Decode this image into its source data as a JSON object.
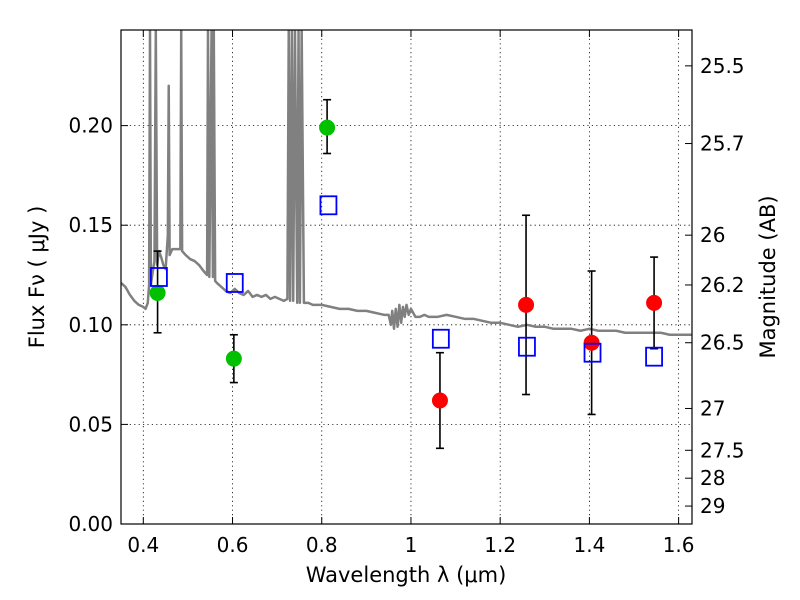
{
  "chart_data": {
    "type": "scatter",
    "title": "",
    "xlabel": "Wavelength  λ (μm)",
    "ylabel": "Flux  Fν  ( μJy )",
    "ylabel_right": "Magnitude (AB)",
    "xlim": [
      0.35,
      1.63
    ],
    "ylim": [
      0.0,
      0.248
    ],
    "grid": true,
    "x_ticks": [
      0.4,
      0.6,
      0.8,
      1.0,
      1.2,
      1.4,
      1.6
    ],
    "x_tick_labels": [
      "0.4",
      "0.6",
      "0.8",
      "1",
      "1.2",
      "1.4",
      "1.6"
    ],
    "y_ticks": [
      0.0,
      0.05,
      0.1,
      0.15,
      0.2
    ],
    "y_tick_labels": [
      "0.00",
      "0.05",
      "0.10",
      "0.15",
      "0.20"
    ],
    "right_ticks": [
      {
        "flux": 0.23,
        "label": "25.5"
      },
      {
        "flux": 0.191,
        "label": "25.7"
      },
      {
        "flux": 0.145,
        "label": "26"
      },
      {
        "flux": 0.12,
        "label": "26.2"
      },
      {
        "flux": 0.091,
        "label": "26.5"
      },
      {
        "flux": 0.058,
        "label": "27"
      },
      {
        "flux": 0.037,
        "label": "27.5"
      },
      {
        "flux": 0.023,
        "label": "28"
      },
      {
        "flux": 0.009,
        "label": "29"
      }
    ],
    "series": [
      {
        "name": "template spectrum",
        "kind": "line",
        "color": "#808080",
        "points": [
          [
            0.35,
            0.121
          ],
          [
            0.36,
            0.119
          ],
          [
            0.37,
            0.115
          ],
          [
            0.38,
            0.112
          ],
          [
            0.39,
            0.11
          ],
          [
            0.4,
            0.109
          ],
          [
            0.405,
            0.108
          ],
          [
            0.41,
            0.111
          ],
          [
            0.413,
            0.12
          ],
          [
            0.415,
            0.248
          ],
          [
            0.417,
            0.12
          ],
          [
            0.42,
            0.125
          ],
          [
            0.425,
            0.132
          ],
          [
            0.428,
            0.248
          ],
          [
            0.431,
            0.13
          ],
          [
            0.435,
            0.137
          ],
          [
            0.44,
            0.134
          ],
          [
            0.445,
            0.13
          ],
          [
            0.45,
            0.128
          ],
          [
            0.455,
            0.145
          ],
          [
            0.457,
            0.22
          ],
          [
            0.459,
            0.135
          ],
          [
            0.465,
            0.138
          ],
          [
            0.475,
            0.138
          ],
          [
            0.483,
            0.138
          ],
          [
            0.485,
            0.248
          ],
          [
            0.487,
            0.137
          ],
          [
            0.495,
            0.135
          ],
          [
            0.505,
            0.133
          ],
          [
            0.515,
            0.132
          ],
          [
            0.525,
            0.13
          ],
          [
            0.535,
            0.127
          ],
          [
            0.543,
            0.125
          ],
          [
            0.545,
            0.248
          ],
          [
            0.548,
            0.124
          ],
          [
            0.553,
            0.248
          ],
          [
            0.556,
            0.124
          ],
          [
            0.558,
            0.248
          ],
          [
            0.561,
            0.122
          ],
          [
            0.565,
            0.121
          ],
          [
            0.575,
            0.119
          ],
          [
            0.585,
            0.117
          ],
          [
            0.595,
            0.116
          ],
          [
            0.605,
            0.118
          ],
          [
            0.615,
            0.116
          ],
          [
            0.625,
            0.115
          ],
          [
            0.635,
            0.117
          ],
          [
            0.645,
            0.114
          ],
          [
            0.655,
            0.115
          ],
          [
            0.665,
            0.114
          ],
          [
            0.675,
            0.115
          ],
          [
            0.685,
            0.113
          ],
          [
            0.695,
            0.114
          ],
          [
            0.705,
            0.113
          ],
          [
            0.715,
            0.112
          ],
          [
            0.723,
            0.113
          ],
          [
            0.726,
            0.248
          ],
          [
            0.729,
            0.112
          ],
          [
            0.733,
            0.248
          ],
          [
            0.736,
            0.112
          ],
          [
            0.74,
            0.248
          ],
          [
            0.745,
            0.111
          ],
          [
            0.748,
            0.248
          ],
          [
            0.751,
            0.111
          ],
          [
            0.755,
            0.248
          ],
          [
            0.76,
            0.111
          ],
          [
            0.77,
            0.111
          ],
          [
            0.78,
            0.11
          ],
          [
            0.8,
            0.11
          ],
          [
            0.82,
            0.109
          ],
          [
            0.84,
            0.108
          ],
          [
            0.86,
            0.108
          ],
          [
            0.88,
            0.107
          ],
          [
            0.9,
            0.107
          ],
          [
            0.92,
            0.106
          ],
          [
            0.94,
            0.105
          ],
          [
            0.95,
            0.105
          ],
          [
            0.955,
            0.1
          ],
          [
            0.958,
            0.107
          ],
          [
            0.962,
            0.098
          ],
          [
            0.966,
            0.108
          ],
          [
            0.97,
            0.099
          ],
          [
            0.974,
            0.11
          ],
          [
            0.978,
            0.101
          ],
          [
            0.982,
            0.109
          ],
          [
            0.986,
            0.104
          ],
          [
            0.99,
            0.11
          ],
          [
            0.995,
            0.105
          ],
          [
            1.0,
            0.108
          ],
          [
            1.01,
            0.104
          ],
          [
            1.02,
            0.104
          ],
          [
            1.03,
            0.105
          ],
          [
            1.04,
            0.104
          ],
          [
            1.06,
            0.104
          ],
          [
            1.08,
            0.105
          ],
          [
            1.1,
            0.104
          ],
          [
            1.12,
            0.103
          ],
          [
            1.14,
            0.103
          ],
          [
            1.16,
            0.102
          ],
          [
            1.18,
            0.101
          ],
          [
            1.2,
            0.101
          ],
          [
            1.22,
            0.1
          ],
          [
            1.24,
            0.099
          ],
          [
            1.26,
            0.1
          ],
          [
            1.28,
            0.099
          ],
          [
            1.3,
            0.099
          ],
          [
            1.32,
            0.098
          ],
          [
            1.34,
            0.098
          ],
          [
            1.36,
            0.098
          ],
          [
            1.38,
            0.097
          ],
          [
            1.4,
            0.098
          ],
          [
            1.42,
            0.097
          ],
          [
            1.44,
            0.097
          ],
          [
            1.46,
            0.097
          ],
          [
            1.48,
            0.096
          ],
          [
            1.5,
            0.096
          ],
          [
            1.52,
            0.096
          ],
          [
            1.54,
            0.096
          ],
          [
            1.56,
            0.096
          ],
          [
            1.58,
            0.095
          ],
          [
            1.6,
            0.095
          ],
          [
            1.63,
            0.095
          ]
        ]
      },
      {
        "name": "green detections",
        "kind": "points",
        "color": "#00c000",
        "points": [
          {
            "x": 0.432,
            "y": 0.116,
            "err_lo": 0.096,
            "err_hi": 0.137
          },
          {
            "x": 0.603,
            "y": 0.083,
            "err_lo": 0.071,
            "err_hi": 0.095
          },
          {
            "x": 0.812,
            "y": 0.199,
            "err_lo": 0.186,
            "err_hi": 0.213
          }
        ]
      },
      {
        "name": "red detections",
        "kind": "points",
        "color": "#ff0000",
        "points": [
          {
            "x": 1.065,
            "y": 0.062,
            "err_lo": 0.038,
            "err_hi": 0.086
          },
          {
            "x": 1.258,
            "y": 0.11,
            "err_lo": 0.065,
            "err_hi": 0.155
          },
          {
            "x": 1.405,
            "y": 0.091,
            "err_lo": 0.055,
            "err_hi": 0.127
          },
          {
            "x": 1.545,
            "y": 0.111,
            "err_lo": 0.088,
            "err_hi": 0.134
          }
        ]
      },
      {
        "name": "model photometry",
        "kind": "open-squares",
        "color": "#0000ff",
        "points": [
          {
            "x": 0.435,
            "y": 0.124
          },
          {
            "x": 0.605,
            "y": 0.121
          },
          {
            "x": 0.815,
            "y": 0.16
          },
          {
            "x": 1.067,
            "y": 0.093
          },
          {
            "x": 1.26,
            "y": 0.089
          },
          {
            "x": 1.407,
            "y": 0.086
          },
          {
            "x": 1.545,
            "y": 0.084
          }
        ]
      }
    ]
  }
}
